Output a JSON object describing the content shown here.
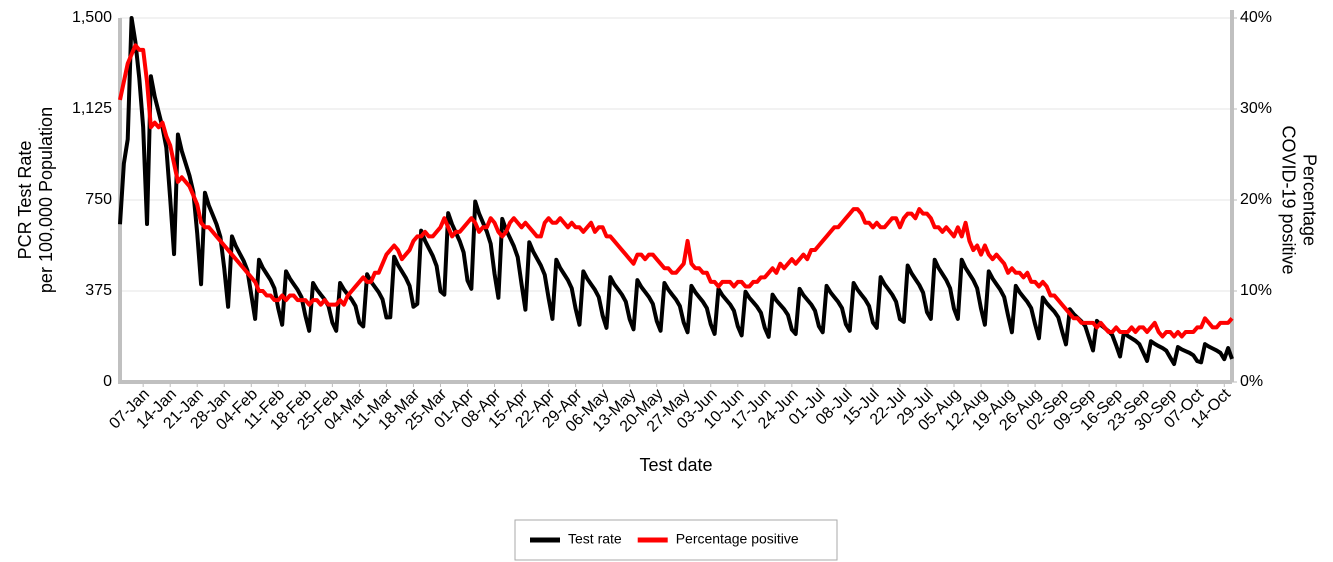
{
  "chart_data": {
    "type": "line",
    "x_label": "Test date",
    "y_label": [
      "PCR Test Rate",
      "per 100,000 Population"
    ],
    "y2_label": [
      "Percentage",
      "COVID-19 positive"
    ],
    "xlim": [
      1,
      289
    ],
    "xticks": [
      {
        "value": 7,
        "label": "07-Jan"
      },
      {
        "value": 14,
        "label": "14-Jan"
      },
      {
        "value": 21,
        "label": "21-Jan"
      },
      {
        "value": 28,
        "label": "28-Jan"
      },
      {
        "value": 35,
        "label": "04-Feb"
      },
      {
        "value": 42,
        "label": "11-Feb"
      },
      {
        "value": 49,
        "label": "18-Feb"
      },
      {
        "value": 56,
        "label": "25-Feb"
      },
      {
        "value": 63,
        "label": "04-Mar"
      },
      {
        "value": 70,
        "label": "11-Mar"
      },
      {
        "value": 77,
        "label": "18-Mar"
      },
      {
        "value": 84,
        "label": "25-Mar"
      },
      {
        "value": 91,
        "label": "01-Apr"
      },
      {
        "value": 98,
        "label": "08-Apr"
      },
      {
        "value": 105,
        "label": "15-Apr"
      },
      {
        "value": 112,
        "label": "22-Apr"
      },
      {
        "value": 119,
        "label": "29-Apr"
      },
      {
        "value": 126,
        "label": "06-May"
      },
      {
        "value": 133,
        "label": "13-May"
      },
      {
        "value": 140,
        "label": "20-May"
      },
      {
        "value": 147,
        "label": "27-May"
      },
      {
        "value": 154,
        "label": "03-Jun"
      },
      {
        "value": 161,
        "label": "10-Jun"
      },
      {
        "value": 168,
        "label": "17-Jun"
      },
      {
        "value": 175,
        "label": "24-Jun"
      },
      {
        "value": 182,
        "label": "01-Jul"
      },
      {
        "value": 189,
        "label": "08-Jul"
      },
      {
        "value": 196,
        "label": "15-Jul"
      },
      {
        "value": 203,
        "label": "22-Jul"
      },
      {
        "value": 210,
        "label": "29-Jul"
      },
      {
        "value": 217,
        "label": "05-Aug"
      },
      {
        "value": 224,
        "label": "12-Aug"
      },
      {
        "value": 231,
        "label": "19-Aug"
      },
      {
        "value": 238,
        "label": "26-Aug"
      },
      {
        "value": 245,
        "label": "02-Sep"
      },
      {
        "value": 252,
        "label": "09-Sep"
      },
      {
        "value": 259,
        "label": "16-Sep"
      },
      {
        "value": 266,
        "label": "23-Sep"
      },
      {
        "value": 273,
        "label": "30-Sep"
      },
      {
        "value": 280,
        "label": "07-Oct"
      },
      {
        "value": 287,
        "label": "14-Oct"
      }
    ],
    "ylim": [
      0,
      1500
    ],
    "yticks": [
      0,
      375,
      750,
      {
        "value": 1125,
        "label": "1,125"
      },
      {
        "value": 1500,
        "label": "1,500"
      }
    ],
    "y2lim": [
      0,
      40
    ],
    "y2ticks": [
      {
        "value": 0,
        "label": "0%"
      },
      {
        "value": 10,
        "label": "10%"
      },
      {
        "value": 20,
        "label": "20%"
      },
      {
        "value": 30,
        "label": "30%"
      },
      {
        "value": 40,
        "label": "40%"
      }
    ],
    "grid": true,
    "legend": "bottom",
    "x": [
      1,
      2,
      3,
      4,
      5,
      6,
      7,
      8,
      9,
      10,
      11,
      12,
      13,
      14,
      15,
      16,
      17,
      18,
      19,
      20,
      21,
      22,
      23,
      24,
      25,
      26,
      27,
      28,
      29,
      30,
      31,
      32,
      33,
      34,
      35,
      36,
      37,
      38,
      39,
      40,
      41,
      42,
      43,
      44,
      45,
      46,
      47,
      48,
      49,
      50,
      51,
      52,
      53,
      54,
      55,
      56,
      57,
      58,
      59,
      60,
      61,
      62,
      63,
      64,
      65,
      66,
      67,
      68,
      69,
      70,
      71,
      72,
      73,
      74,
      75,
      76,
      77,
      78,
      79,
      80,
      81,
      82,
      83,
      84,
      85,
      86,
      87,
      88,
      89,
      90,
      91,
      92,
      93,
      94,
      95,
      96,
      97,
      98,
      99,
      100,
      101,
      102,
      103,
      104,
      105,
      106,
      107,
      108,
      109,
      110,
      111,
      112,
      113,
      114,
      115,
      116,
      117,
      118,
      119,
      120,
      121,
      122,
      123,
      124,
      125,
      126,
      127,
      128,
      129,
      130,
      131,
      132,
      133,
      134,
      135,
      136,
      137,
      138,
      139,
      140,
      141,
      142,
      143,
      144,
      145,
      146,
      147,
      148,
      149,
      150,
      151,
      152,
      153,
      154,
      155,
      156,
      157,
      158,
      159,
      160,
      161,
      162,
      163,
      164,
      165,
      166,
      167,
      168,
      169,
      170,
      171,
      172,
      173,
      174,
      175,
      176,
      177,
      178,
      179,
      180,
      181,
      182,
      183,
      184,
      185,
      186,
      187,
      188,
      189,
      190,
      191,
      192,
      193,
      194,
      195,
      196,
      197,
      198,
      199,
      200,
      201,
      202,
      203,
      204,
      205,
      206,
      207,
      208,
      209,
      210,
      211,
      212,
      213,
      214,
      215,
      216,
      217,
      218,
      219,
      220,
      221,
      222,
      223,
      224,
      225,
      226,
      227,
      228,
      229,
      230,
      231,
      232,
      233,
      234,
      235,
      236,
      237,
      238,
      239,
      240,
      241,
      242,
      243,
      244,
      245,
      246,
      247,
      248,
      249,
      250,
      251,
      252,
      253,
      254,
      255,
      256,
      257,
      258,
      259,
      260,
      261,
      262,
      263,
      264,
      265,
      266,
      267,
      268,
      269,
      270,
      271,
      272,
      273,
      274,
      275,
      276,
      277,
      278,
      279,
      280,
      281,
      282,
      283,
      284,
      285,
      286,
      287,
      288,
      289
    ],
    "series": [
      {
        "name": "Test rate",
        "color": "#000000",
        "axis": "y",
        "values": [
          650,
          900,
          1000,
          1500,
          1400,
          1250,
          1050,
          651,
          1260,
          1176,
          1113,
          1050,
          966,
          756,
          527,
          1020,
          952,
          901,
          850,
          782,
          612,
          403,
          780,
          728,
          689,
          650,
          598,
          468,
          310,
          600,
          560,
          530,
          500,
          460,
          360,
          260,
          504,
          470,
          445,
          420,
          386,
          302,
          236,
          456,
          426,
          403,
          380,
          350,
          274,
          211,
          408,
          381,
          360,
          340,
          313,
          245,
          211,
          408,
          381,
          360,
          340,
          313,
          245,
          229,
          444,
          414,
          392,
          370,
          340,
          266,
          267,
          516,
          482,
          456,
          430,
          396,
          310,
          322,
          624,
          582,
          551,
          520,
          478,
          374,
          360,
          696,
          650,
          615,
          580,
          534,
          418,
          384,
          744,
          694,
          657,
          620,
          570,
          446,
          347,
          672,
          627,
          594,
          560,
          515,
          403,
          298,
          576,
          538,
          509,
          480,
          442,
          346,
          260,
          504,
          470,
          445,
          420,
          386,
          302,
          236,
          456,
          426,
          403,
          380,
          350,
          274,
          223,
          432,
          403,
          382,
          360,
          331,
          259,
          217,
          420,
          392,
          371,
          350,
          322,
          252,
          211,
          408,
          381,
          360,
          340,
          313,
          245,
          205,
          396,
          370,
          350,
          330,
          304,
          238,
          198,
          384,
          358,
          339,
          320,
          294,
          230,
          192,
          372,
          347,
          329,
          310,
          285,
          223,
          186,
          360,
          336,
          318,
          300,
          276,
          216,
          198,
          384,
          358,
          339,
          320,
          294,
          230,
          205,
          396,
          370,
          350,
          330,
          304,
          238,
          211,
          408,
          381,
          360,
          340,
          313,
          245,
          223,
          432,
          403,
          382,
          360,
          331,
          259,
          248,
          480,
          448,
          424,
          400,
          368,
          288,
          260,
          504,
          470,
          445,
          420,
          386,
          302,
          260,
          504,
          470,
          445,
          420,
          386,
          302,
          236,
          456,
          426,
          403,
          380,
          350,
          274,
          205,
          396,
          370,
          350,
          330,
          304,
          238,
          180,
          348,
          325,
          307,
          290,
          267,
          209,
          155,
          300,
          280,
          265,
          250,
          230,
          180,
          130,
          252,
          235,
          223,
          210,
          193,
          151,
          105,
          204,
          190,
          180,
          170,
          156,
          122,
          87,
          168,
          157,
          148,
          140,
          129,
          101,
          74,
          144,
          134,
          127,
          120,
          110,
          86,
          81,
          156,
          146,
          138,
          130,
          120,
          94,
          140,
          95
        ]
      },
      {
        "name": "Percentage positive",
        "color": "#ff0000",
        "axis": "y2",
        "values": [
          31,
          33,
          35,
          36,
          37,
          36.5,
          36.5,
          33,
          28,
          28.5,
          28,
          28.5,
          27,
          26,
          24,
          22,
          22.5,
          22,
          21.5,
          20.5,
          19.5,
          17.5,
          17,
          17,
          16.5,
          16,
          15.5,
          15,
          14.5,
          14,
          13.5,
          13,
          12.5,
          12,
          11.5,
          11,
          10,
          10,
          9.5,
          9.5,
          9,
          9,
          9.5,
          9,
          9.5,
          9.5,
          9,
          9,
          9,
          8.5,
          9,
          9,
          8.5,
          9,
          8.5,
          8.5,
          8.5,
          9,
          8.5,
          9.5,
          10,
          10.5,
          11,
          11.5,
          11,
          11,
          12,
          12,
          13,
          14,
          14.5,
          15,
          14.5,
          13.5,
          14,
          14.5,
          15.5,
          16,
          16,
          16.5,
          16,
          16,
          16.5,
          17,
          18,
          17,
          16,
          16.5,
          16.5,
          17,
          17.5,
          18,
          17.5,
          16.5,
          17,
          17,
          18,
          17.5,
          16.5,
          16,
          16.5,
          17.5,
          18,
          17.5,
          17,
          17.5,
          17,
          16.5,
          16,
          16,
          17.5,
          18,
          17.5,
          17.5,
          18,
          17.5,
          17,
          17.5,
          17,
          17,
          16.5,
          17,
          17.5,
          16.5,
          17,
          17,
          16,
          16,
          15.5,
          15,
          14.5,
          14,
          13.5,
          13,
          14,
          14,
          13.5,
          14,
          14,
          13.5,
          13,
          12.5,
          12.5,
          12,
          12,
          12.5,
          13,
          15.5,
          13,
          12.5,
          12.5,
          12,
          12,
          11,
          11,
          10.5,
          11,
          11,
          11,
          10.5,
          11,
          11,
          10.5,
          10.5,
          11,
          11,
          11.5,
          11.5,
          12,
          12.5,
          12,
          13,
          12.5,
          13,
          13.5,
          13,
          13.5,
          14,
          13.5,
          14.5,
          14.5,
          15,
          15.5,
          16,
          16.5,
          17,
          17,
          17.5,
          18,
          18.5,
          19,
          19,
          18.5,
          17.5,
          17.5,
          17,
          17.5,
          17,
          17,
          17.5,
          18,
          18,
          17,
          18,
          18.5,
          18.5,
          18,
          19,
          18.5,
          18.5,
          18,
          17,
          17,
          16.5,
          17,
          16.5,
          16,
          17,
          16,
          17.5,
          15.5,
          14.5,
          15,
          14,
          15,
          14,
          13.5,
          14,
          13.5,
          13,
          12,
          12.5,
          12,
          12,
          11.5,
          12,
          11,
          11,
          10.5,
          11,
          10.5,
          9.5,
          9.5,
          9,
          8.5,
          8,
          7.5,
          7,
          7,
          6.5,
          6.5,
          6.5,
          6.5,
          6,
          6.5,
          6,
          5.5,
          5.5,
          6,
          5.5,
          5.5,
          5.5,
          6,
          5.5,
          6,
          6,
          5.5,
          6,
          6.5,
          5.5,
          5,
          5.5,
          5.5,
          5,
          5.5,
          5,
          5.5,
          5.5,
          5.5,
          6,
          6,
          7,
          6.5,
          6,
          6,
          6.5,
          6.5,
          6.5,
          7
        ]
      }
    ]
  }
}
